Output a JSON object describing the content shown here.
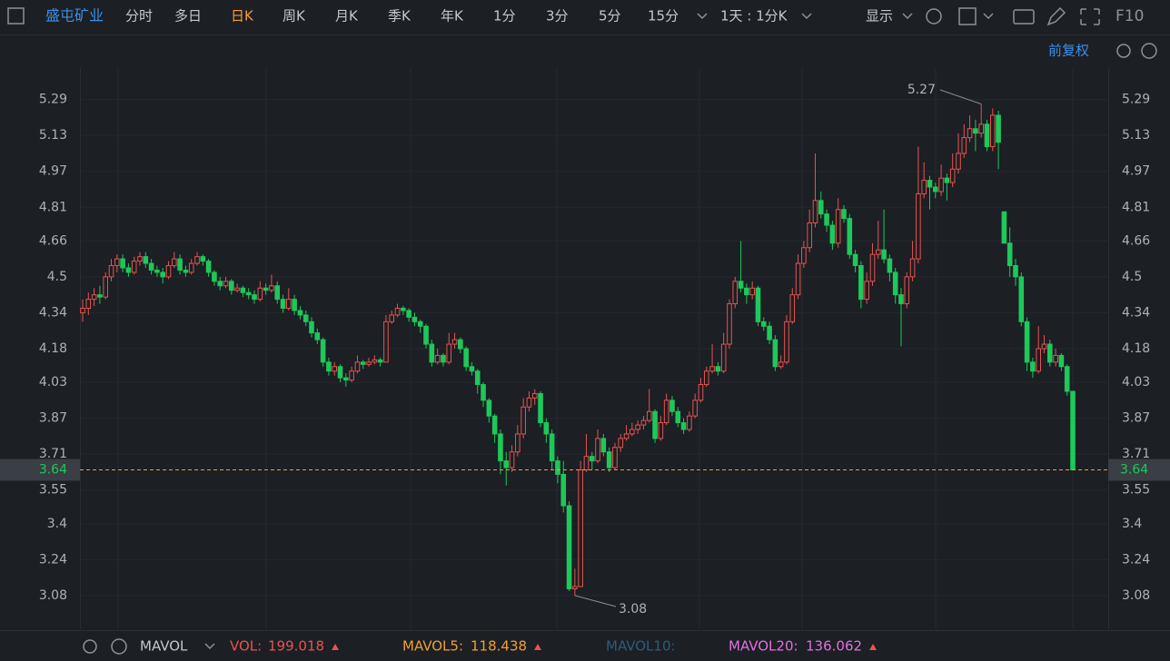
{
  "toolbar": {
    "symbol": "盛屯矿业",
    "periods": [
      "分时",
      "多日",
      "日K",
      "周K",
      "月K",
      "季K",
      "年K",
      "1分",
      "3分",
      "5分",
      "15分"
    ],
    "active_period": 2,
    "interval": "1天 : 1分K",
    "display": "显示",
    "f10": "F10"
  },
  "adjust": "前复权",
  "indicator": {
    "name": "MAVOL",
    "items": [
      {
        "label": "VOL:",
        "value": 199.018,
        "color": "#e8534f"
      },
      {
        "label": "MAVOL5:",
        "value": 118.438,
        "color": "#f0a030"
      },
      {
        "label": "MAVOL10:",
        "color": "#2d5d7c"
      },
      {
        "label": "MAVOL20:",
        "value": 136.062,
        "color": "#e070e0"
      }
    ]
  },
  "chart_data": {
    "type": "candlestick",
    "up_color": "#e8534f",
    "down_color": "#1ec85a",
    "grid": true,
    "ylim": [
      2.93,
      5.43
    ],
    "yticks": [
      3.08,
      3.24,
      3.4,
      3.55,
      3.71,
      3.87,
      4.03,
      4.18,
      4.34,
      4.5,
      4.66,
      4.81,
      4.97,
      5.13,
      5.29
    ],
    "high_label_index": 157,
    "low_label_index": 86,
    "ohlc": [
      [
        4.34,
        4.4,
        4.3,
        4.36
      ],
      [
        4.36,
        4.43,
        4.33,
        4.4
      ],
      [
        4.4,
        4.45,
        4.37,
        4.42
      ],
      [
        4.42,
        4.46,
        4.38,
        4.41
      ],
      [
        4.41,
        4.52,
        4.4,
        4.5
      ],
      [
        4.5,
        4.58,
        4.48,
        4.55
      ],
      [
        4.55,
        4.6,
        4.52,
        4.58
      ],
      [
        4.58,
        4.6,
        4.52,
        4.54
      ],
      [
        4.54,
        4.56,
        4.5,
        4.52
      ],
      [
        4.52,
        4.59,
        4.51,
        4.57
      ],
      [
        4.57,
        4.61,
        4.55,
        4.59
      ],
      [
        4.59,
        4.61,
        4.54,
        4.56
      ],
      [
        4.56,
        4.58,
        4.51,
        4.53
      ],
      [
        4.53,
        4.55,
        4.5,
        4.52
      ],
      [
        4.52,
        4.54,
        4.47,
        4.5
      ],
      [
        4.5,
        4.57,
        4.49,
        4.55
      ],
      [
        4.55,
        4.61,
        4.54,
        4.58
      ],
      [
        4.58,
        4.6,
        4.51,
        4.53
      ],
      [
        4.53,
        4.55,
        4.5,
        4.52
      ],
      [
        4.52,
        4.58,
        4.51,
        4.56
      ],
      [
        4.56,
        4.61,
        4.55,
        4.59
      ],
      [
        4.59,
        4.6,
        4.55,
        4.57
      ],
      [
        4.57,
        4.58,
        4.5,
        4.52
      ],
      [
        4.52,
        4.53,
        4.46,
        4.48
      ],
      [
        4.48,
        4.5,
        4.44,
        4.46
      ],
      [
        4.46,
        4.5,
        4.45,
        4.48
      ],
      [
        4.48,
        4.49,
        4.42,
        4.44
      ],
      [
        4.44,
        4.47,
        4.43,
        4.45
      ],
      [
        4.45,
        4.46,
        4.41,
        4.43
      ],
      [
        4.43,
        4.45,
        4.4,
        4.42
      ],
      [
        4.42,
        4.44,
        4.38,
        4.4
      ],
      [
        4.4,
        4.48,
        4.39,
        4.45
      ],
      [
        4.45,
        4.47,
        4.42,
        4.44
      ],
      [
        4.44,
        4.51,
        4.43,
        4.46
      ],
      [
        4.46,
        4.48,
        4.38,
        4.4
      ],
      [
        4.4,
        4.42,
        4.34,
        4.36
      ],
      [
        4.36,
        4.45,
        4.35,
        4.4
      ],
      [
        4.4,
        4.42,
        4.33,
        4.35
      ],
      [
        4.35,
        4.37,
        4.31,
        4.33
      ],
      [
        4.33,
        4.35,
        4.28,
        4.3
      ],
      [
        4.3,
        4.32,
        4.23,
        4.25
      ],
      [
        4.25,
        4.27,
        4.2,
        4.22
      ],
      [
        4.22,
        4.23,
        4.1,
        4.12
      ],
      [
        4.12,
        4.14,
        4.06,
        4.08
      ],
      [
        4.08,
        4.12,
        4.06,
        4.1
      ],
      [
        4.1,
        4.11,
        4.03,
        4.05
      ],
      [
        4.05,
        4.07,
        4.01,
        4.04
      ],
      [
        4.04,
        4.1,
        4.03,
        4.08
      ],
      [
        4.08,
        4.15,
        4.07,
        4.12
      ],
      [
        4.12,
        4.13,
        4.09,
        4.11
      ],
      [
        4.11,
        4.14,
        4.1,
        4.12
      ],
      [
        4.12,
        4.15,
        4.11,
        4.13
      ],
      [
        4.13,
        4.14,
        4.1,
        4.12
      ],
      [
        4.12,
        4.33,
        4.12,
        4.3
      ],
      [
        4.3,
        4.35,
        4.29,
        4.33
      ],
      [
        4.33,
        4.38,
        4.32,
        4.36
      ],
      [
        4.36,
        4.37,
        4.33,
        4.35
      ],
      [
        4.35,
        4.36,
        4.3,
        4.32
      ],
      [
        4.32,
        4.34,
        4.28,
        4.3
      ],
      [
        4.3,
        4.31,
        4.25,
        4.28
      ],
      [
        4.28,
        4.29,
        4.18,
        4.2
      ],
      [
        4.2,
        4.22,
        4.1,
        4.12
      ],
      [
        4.12,
        4.18,
        4.11,
        4.15
      ],
      [
        4.15,
        4.16,
        4.1,
        4.12
      ],
      [
        4.12,
        4.25,
        4.11,
        4.2
      ],
      [
        4.2,
        4.25,
        4.18,
        4.22
      ],
      [
        4.22,
        4.23,
        4.16,
        4.18
      ],
      [
        4.18,
        4.19,
        4.08,
        4.1
      ],
      [
        4.1,
        4.12,
        4.06,
        4.08
      ],
      [
        4.08,
        4.09,
        3.98,
        4.02
      ],
      [
        4.02,
        4.03,
        3.92,
        3.95
      ],
      [
        3.95,
        3.96,
        3.85,
        3.88
      ],
      [
        3.88,
        3.89,
        3.76,
        3.8
      ],
      [
        3.8,
        3.82,
        3.62,
        3.68
      ],
      [
        3.68,
        3.72,
        3.57,
        3.65
      ],
      [
        3.65,
        3.75,
        3.63,
        3.72
      ],
      [
        3.72,
        3.84,
        3.7,
        3.8
      ],
      [
        3.8,
        3.96,
        3.78,
        3.92
      ],
      [
        3.92,
        3.99,
        3.9,
        3.96
      ],
      [
        3.96,
        4.0,
        3.93,
        3.98
      ],
      [
        3.98,
        3.99,
        3.83,
        3.85
      ],
      [
        3.85,
        3.87,
        3.76,
        3.8
      ],
      [
        3.8,
        3.82,
        3.64,
        3.68
      ],
      [
        3.68,
        3.7,
        3.58,
        3.62
      ],
      [
        3.62,
        3.68,
        3.45,
        3.48
      ],
      [
        3.48,
        3.5,
        3.1,
        3.11
      ],
      [
        3.11,
        3.2,
        3.08,
        3.12
      ],
      [
        3.12,
        3.68,
        3.12,
        3.64
      ],
      [
        3.64,
        3.8,
        3.63,
        3.7
      ],
      [
        3.7,
        3.72,
        3.64,
        3.68
      ],
      [
        3.68,
        3.82,
        3.67,
        3.78
      ],
      [
        3.78,
        3.8,
        3.7,
        3.72
      ],
      [
        3.72,
        3.74,
        3.63,
        3.65
      ],
      [
        3.65,
        3.76,
        3.64,
        3.74
      ],
      [
        3.74,
        3.8,
        3.72,
        3.78
      ],
      [
        3.78,
        3.84,
        3.77,
        3.8
      ],
      [
        3.8,
        3.85,
        3.79,
        3.82
      ],
      [
        3.82,
        3.86,
        3.8,
        3.84
      ],
      [
        3.84,
        3.88,
        3.82,
        3.86
      ],
      [
        3.86,
        4.0,
        3.85,
        3.9
      ],
      [
        3.9,
        3.91,
        3.76,
        3.78
      ],
      [
        3.78,
        3.88,
        3.77,
        3.85
      ],
      [
        3.85,
        3.98,
        3.84,
        3.95
      ],
      [
        3.95,
        3.97,
        3.88,
        3.9
      ],
      [
        3.9,
        3.92,
        3.83,
        3.85
      ],
      [
        3.85,
        3.87,
        3.8,
        3.82
      ],
      [
        3.82,
        3.9,
        3.81,
        3.88
      ],
      [
        3.88,
        3.98,
        3.87,
        3.95
      ],
      [
        3.95,
        4.05,
        3.94,
        4.02
      ],
      [
        4.02,
        4.1,
        4.01,
        4.08
      ],
      [
        4.08,
        4.2,
        4.07,
        4.1
      ],
      [
        4.1,
        4.12,
        4.06,
        4.08
      ],
      [
        4.08,
        4.25,
        4.07,
        4.2
      ],
      [
        4.2,
        4.4,
        4.18,
        4.38
      ],
      [
        4.38,
        4.5,
        4.36,
        4.48
      ],
      [
        4.48,
        4.66,
        4.43,
        4.45
      ],
      [
        4.45,
        4.47,
        4.38,
        4.42
      ],
      [
        4.42,
        4.48,
        4.4,
        4.45
      ],
      [
        4.45,
        4.46,
        4.28,
        4.3
      ],
      [
        4.3,
        4.32,
        4.26,
        4.28
      ],
      [
        4.28,
        4.3,
        4.2,
        4.22
      ],
      [
        4.22,
        4.24,
        4.08,
        4.1
      ],
      [
        4.1,
        4.15,
        4.09,
        4.12
      ],
      [
        4.12,
        4.33,
        4.11,
        4.3
      ],
      [
        4.3,
        4.45,
        4.29,
        4.42
      ],
      [
        4.42,
        4.6,
        4.4,
        4.56
      ],
      [
        4.56,
        4.66,
        4.54,
        4.63
      ],
      [
        4.63,
        4.8,
        4.61,
        4.74
      ],
      [
        4.74,
        5.05,
        4.72,
        4.84
      ],
      [
        4.84,
        4.88,
        4.76,
        4.78
      ],
      [
        4.78,
        4.8,
        4.7,
        4.73
      ],
      [
        4.73,
        4.75,
        4.62,
        4.65
      ],
      [
        4.65,
        4.85,
        4.63,
        4.8
      ],
      [
        4.8,
        4.82,
        4.74,
        4.76
      ],
      [
        4.76,
        4.78,
        4.58,
        4.6
      ],
      [
        4.6,
        4.62,
        4.52,
        4.55
      ],
      [
        4.55,
        4.57,
        4.36,
        4.4
      ],
      [
        4.4,
        4.52,
        4.38,
        4.48
      ],
      [
        4.48,
        4.65,
        4.46,
        4.6
      ],
      [
        4.6,
        4.75,
        4.58,
        4.62
      ],
      [
        4.62,
        4.8,
        4.56,
        4.58
      ],
      [
        4.58,
        4.6,
        4.48,
        4.52
      ],
      [
        4.52,
        4.54,
        4.38,
        4.42
      ],
      [
        4.42,
        4.45,
        4.19,
        4.38
      ],
      [
        4.38,
        4.52,
        4.36,
        4.5
      ],
      [
        4.5,
        4.66,
        4.48,
        4.58
      ],
      [
        4.58,
        5.08,
        4.56,
        4.87
      ],
      [
        4.87,
        5.01,
        4.85,
        4.93
      ],
      [
        4.93,
        4.95,
        4.8,
        4.9
      ],
      [
        4.9,
        4.92,
        4.85,
        4.88
      ],
      [
        4.88,
        5.0,
        4.86,
        4.94
      ],
      [
        4.94,
        4.96,
        4.84,
        4.92
      ],
      [
        4.92,
        5.05,
        4.9,
        4.98
      ],
      [
        4.98,
        5.14,
        4.96,
        5.05
      ],
      [
        5.05,
        5.18,
        5.03,
        5.12
      ],
      [
        5.12,
        5.22,
        5.1,
        5.16
      ],
      [
        5.16,
        5.2,
        5.06,
        5.14
      ],
      [
        5.14,
        5.27,
        5.12,
        5.18
      ],
      [
        5.18,
        5.2,
        5.06,
        5.08
      ],
      [
        5.08,
        5.25,
        5.06,
        5.22
      ],
      [
        5.22,
        5.24,
        4.98,
        5.1
      ],
      [
        4.79,
        4.79,
        4.65,
        4.65
      ],
      [
        4.65,
        4.72,
        4.5,
        4.55
      ],
      [
        4.55,
        4.58,
        4.46,
        4.5
      ],
      [
        4.5,
        4.52,
        4.28,
        4.3
      ],
      [
        4.3,
        4.32,
        4.08,
        4.12
      ],
      [
        4.12,
        4.14,
        4.05,
        4.08
      ],
      [
        4.08,
        4.28,
        4.07,
        4.18
      ],
      [
        4.18,
        4.24,
        4.16,
        4.2
      ],
      [
        4.2,
        4.22,
        4.1,
        4.12
      ],
      [
        4.12,
        4.18,
        4.1,
        4.15
      ],
      [
        4.15,
        4.16,
        4.08,
        4.1
      ],
      [
        4.1,
        4.11,
        3.97,
        3.99
      ],
      [
        3.99,
        3.99,
        3.64,
        3.64
      ]
    ]
  }
}
